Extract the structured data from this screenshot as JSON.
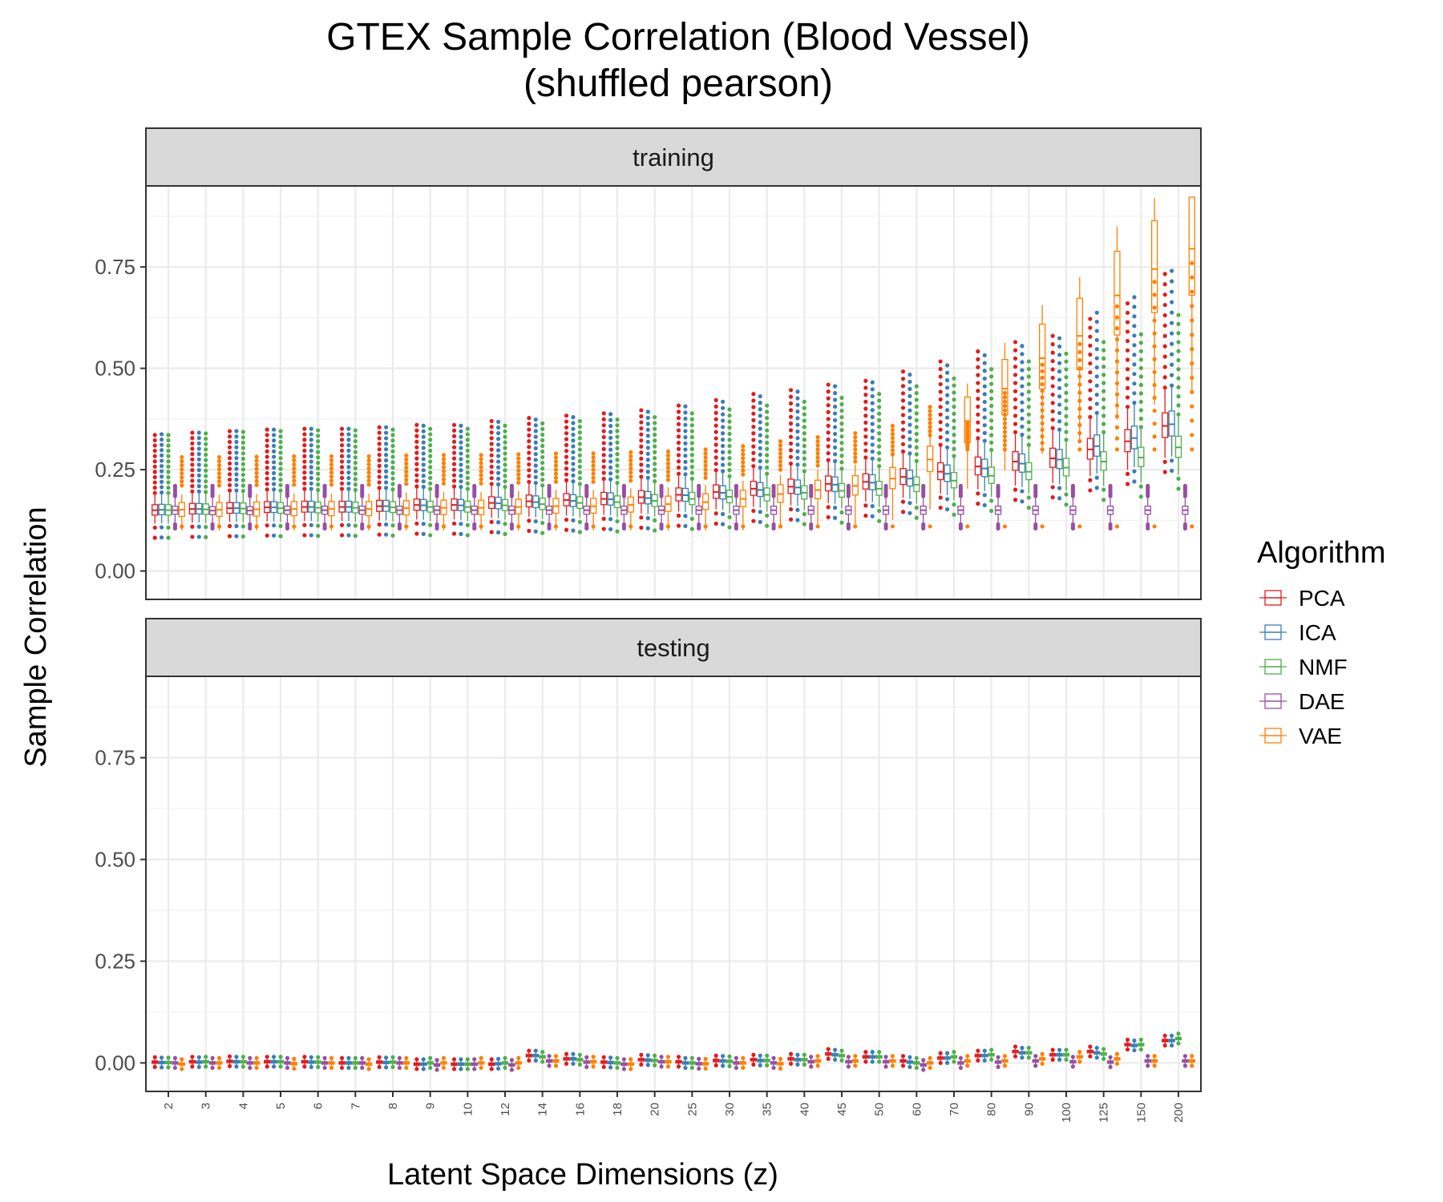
{
  "chart_data": {
    "type": "box",
    "title": "GTEX Sample Correlation (Blood Vessel)",
    "subtitle": "(shuffled pearson)",
    "xlabel": "Latent Space Dimensions (z)",
    "ylabel": "Sample Correlation",
    "ylim": [
      -0.07,
      0.95
    ],
    "y_ticks": [
      "0.00",
      "0.25",
      "0.50",
      "0.75"
    ],
    "grid": true,
    "legend_title": "Algorithm",
    "legend_position": "right",
    "categories": [
      "2",
      "3",
      "4",
      "5",
      "6",
      "7",
      "8",
      "9",
      "10",
      "12",
      "14",
      "16",
      "18",
      "20",
      "25",
      "30",
      "35",
      "40",
      "45",
      "50",
      "60",
      "70",
      "80",
      "90",
      "100",
      "125",
      "150",
      "200"
    ],
    "series": [
      {
        "name": "PCA",
        "color": "#E41A1C"
      },
      {
        "name": "ICA",
        "color": "#377EB8"
      },
      {
        "name": "NMF",
        "color": "#4DAF4A"
      },
      {
        "name": "DAE",
        "color": "#984EA3"
      },
      {
        "name": "VAE",
        "color": "#FF7F00"
      }
    ],
    "panels": [
      {
        "label": "training",
        "median": {
          "PCA": [
            0.15,
            0.153,
            0.155,
            0.157,
            0.158,
            0.158,
            0.16,
            0.163,
            0.163,
            0.168,
            0.172,
            0.175,
            0.178,
            0.182,
            0.188,
            0.195,
            0.203,
            0.208,
            0.215,
            0.22,
            0.232,
            0.245,
            0.258,
            0.27,
            0.278,
            0.3,
            0.32,
            0.358
          ],
          "ICA": [
            0.151,
            0.153,
            0.155,
            0.157,
            0.158,
            0.158,
            0.16,
            0.162,
            0.162,
            0.167,
            0.17,
            0.173,
            0.177,
            0.18,
            0.187,
            0.193,
            0.2,
            0.206,
            0.213,
            0.218,
            0.228,
            0.24,
            0.253,
            0.265,
            0.275,
            0.308,
            0.328,
            0.362
          ],
          "NMF": [
            0.15,
            0.152,
            0.154,
            0.155,
            0.156,
            0.156,
            0.157,
            0.158,
            0.158,
            0.162,
            0.165,
            0.168,
            0.17,
            0.173,
            0.178,
            0.183,
            0.188,
            0.193,
            0.198,
            0.203,
            0.213,
            0.223,
            0.235,
            0.245,
            0.255,
            0.27,
            0.28,
            0.305
          ],
          "DAE": [
            0.15,
            0.149,
            0.149,
            0.15,
            0.15,
            0.15,
            0.15,
            0.15,
            0.15,
            0.15,
            0.15,
            0.15,
            0.15,
            0.15,
            0.15,
            0.15,
            0.15,
            0.15,
            0.15,
            0.15,
            0.15,
            0.15,
            0.15,
            0.15,
            0.15,
            0.15,
            0.15,
            0.15
          ],
          "VAE": [
            0.151,
            0.151,
            0.152,
            0.153,
            0.153,
            0.153,
            0.155,
            0.156,
            0.156,
            0.158,
            0.16,
            0.16,
            0.163,
            0.165,
            0.17,
            0.178,
            0.19,
            0.2,
            0.21,
            0.228,
            0.275,
            0.37,
            0.45,
            0.525,
            0.58,
            0.68,
            0.745,
            0.795
          ]
        }
      },
      {
        "label": "testing",
        "median": {
          "PCA": [
            0.002,
            0.003,
            0.004,
            0.003,
            0.003,
            0.0,
            0.002,
            -0.003,
            -0.003,
            -0.003,
            0.018,
            0.01,
            0.002,
            0.008,
            0.003,
            0.006,
            0.008,
            0.01,
            0.022,
            0.015,
            0.005,
            0.012,
            0.018,
            0.028,
            0.02,
            0.028,
            0.045,
            0.055
          ],
          "ICA": [
            0.001,
            0.002,
            0.003,
            0.003,
            0.002,
            0.0,
            0.001,
            -0.003,
            -0.003,
            -0.002,
            0.018,
            0.01,
            0.001,
            0.007,
            0.0,
            0.005,
            0.006,
            0.008,
            0.02,
            0.015,
            0.002,
            0.012,
            0.018,
            0.025,
            0.02,
            0.025,
            0.043,
            0.055
          ],
          "NMF": [
            0.001,
            0.003,
            0.003,
            0.003,
            0.002,
            0.0,
            0.002,
            0.0,
            -0.003,
            0.0,
            0.015,
            0.008,
            0.0,
            0.006,
            0.0,
            0.004,
            0.006,
            0.008,
            0.018,
            0.015,
            0.0,
            0.015,
            0.02,
            0.025,
            0.02,
            0.022,
            0.045,
            0.06
          ],
          "DAE": [
            0.0,
            0.0,
            0.0,
            0.0,
            0.0,
            0.0,
            0.0,
            -0.005,
            -0.003,
            -0.005,
            0.005,
            0.002,
            -0.003,
            0.003,
            -0.002,
            0.0,
            0.0,
            0.003,
            0.003,
            0.003,
            -0.005,
            0.0,
            0.002,
            0.005,
            0.003,
            0.002,
            0.005,
            0.005
          ],
          "VAE": [
            -0.003,
            0.0,
            0.0,
            -0.002,
            0.0,
            -0.003,
            0.0,
            0.0,
            0.0,
            0.0,
            0.005,
            0.003,
            -0.003,
            0.003,
            -0.002,
            0.0,
            -0.002,
            0.005,
            0.005,
            0.005,
            0.0,
            0.005,
            0.005,
            0.01,
            0.015,
            0.01,
            0.005,
            0.005
          ]
        }
      }
    ]
  }
}
